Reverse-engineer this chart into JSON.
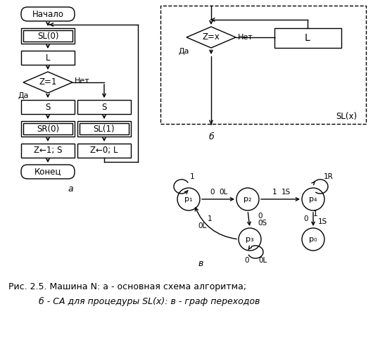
{
  "bg_color": "#ffffff",
  "title_line1": "Рис. 2.5. Машина N: а - основная схема алгоритма;",
  "title_line2": "б - СА для процедуры SL(x): в - граф переходов",
  "label_a": "а",
  "label_b": "б",
  "label_v": "в"
}
